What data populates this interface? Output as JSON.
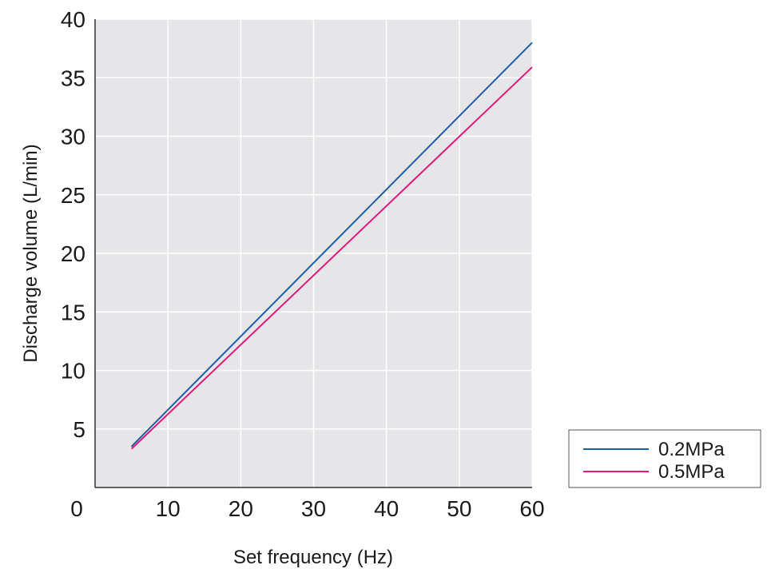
{
  "chart_data": {
    "type": "line",
    "title": "",
    "xlabel": "Set frequency (Hz)",
    "ylabel": "Discharge volume (L/min)",
    "xlim": [
      0,
      60
    ],
    "ylim": [
      0,
      40
    ],
    "x_ticks": [
      0,
      10,
      20,
      30,
      40,
      50,
      60
    ],
    "y_ticks": [
      5,
      10,
      15,
      20,
      25,
      30,
      35,
      40
    ],
    "grid": true,
    "legend_position": "bottom-right, outside plot",
    "background_color": "#e6e6e8",
    "series": [
      {
        "name": "0.2MPa",
        "color": "#1f5fa6",
        "x": [
          5,
          60
        ],
        "y": [
          3.5,
          38
        ]
      },
      {
        "name": "0.5MPa",
        "color": "#e0197d",
        "x": [
          5,
          60
        ],
        "y": [
          3.3,
          35.9
        ]
      }
    ]
  }
}
